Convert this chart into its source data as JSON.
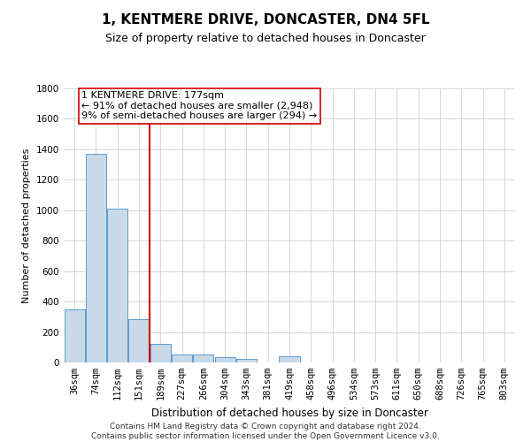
{
  "title": "1, KENTMERE DRIVE, DONCASTER, DN4 5FL",
  "subtitle": "Size of property relative to detached houses in Doncaster",
  "xlabel": "Distribution of detached houses by size in Doncaster",
  "ylabel": "Number of detached properties",
  "categories": [
    "36sqm",
    "74sqm",
    "112sqm",
    "151sqm",
    "189sqm",
    "227sqm",
    "266sqm",
    "304sqm",
    "343sqm",
    "381sqm",
    "419sqm",
    "458sqm",
    "496sqm",
    "534sqm",
    "573sqm",
    "611sqm",
    "650sqm",
    "688sqm",
    "726sqm",
    "765sqm",
    "803sqm"
  ],
  "values": [
    350,
    1370,
    1010,
    285,
    120,
    55,
    50,
    35,
    22,
    0,
    40,
    0,
    0,
    0,
    0,
    0,
    0,
    0,
    0,
    0,
    0
  ],
  "bar_color": "#c9d9e8",
  "bar_edge_color": "#5b9bd5",
  "vline_index": 3.5,
  "vline_color": "#cc0000",
  "annotation_text": "1 KENTMERE DRIVE: 177sqm\n← 91% of detached houses are smaller (2,948)\n9% of semi-detached houses are larger (294) →",
  "annotation_box_color": "#ffffff",
  "annotation_box_edge": "#cc0000",
  "ylim": [
    0,
    1800
  ],
  "yticks": [
    0,
    200,
    400,
    600,
    800,
    1000,
    1200,
    1400,
    1600,
    1800
  ],
  "grid_color": "#d0d0d0",
  "background_color": "#ffffff",
  "footer": "Contains HM Land Registry data © Crown copyright and database right 2024.\nContains public sector information licensed under the Open Government Licence v3.0.",
  "title_fontsize": 11,
  "subtitle_fontsize": 9,
  "xlabel_fontsize": 8.5,
  "ylabel_fontsize": 8,
  "tick_fontsize": 7.5,
  "annotation_fontsize": 8,
  "footer_fontsize": 6.5
}
